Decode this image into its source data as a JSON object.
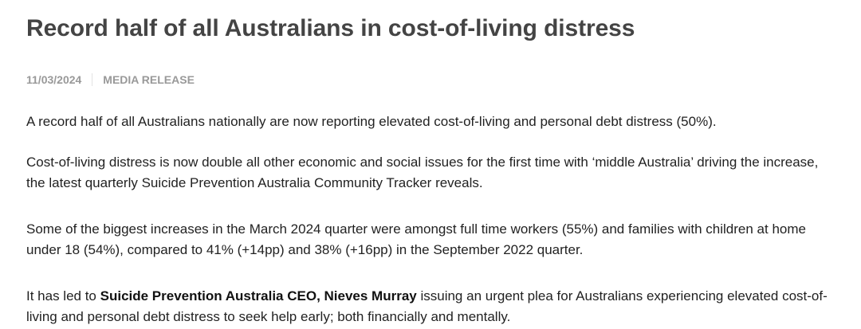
{
  "article": {
    "title": "Record half of all Australians in cost-of-living distress",
    "date": "11/03/2024",
    "category": "MEDIA RELEASE",
    "paragraphs": [
      "A record half of all Australians nationally are now reporting elevated cost-of-living and personal debt distress (50%).",
      "Cost-of-living distress is now double all other economic and social issues for the first time with ‘middle Australia’ driving the increase, the latest quarterly Suicide Prevention Australia Community Tracker reveals.",
      "Some of the biggest increases in the March 2024 quarter were amongst full time workers (55%) and families with children at home under 18 (54%), compared to 41% (+14pp) and 38% (+16pp) in the September 2022 quarter."
    ],
    "p4": {
      "before": "It has led to ",
      "bold": "Suicide Prevention Australia CEO, Nieves Murray",
      "after": " issuing an urgent plea for Australians experiencing elevated cost-of-living and personal debt distress to seek help early; both financially and mentally."
    }
  }
}
